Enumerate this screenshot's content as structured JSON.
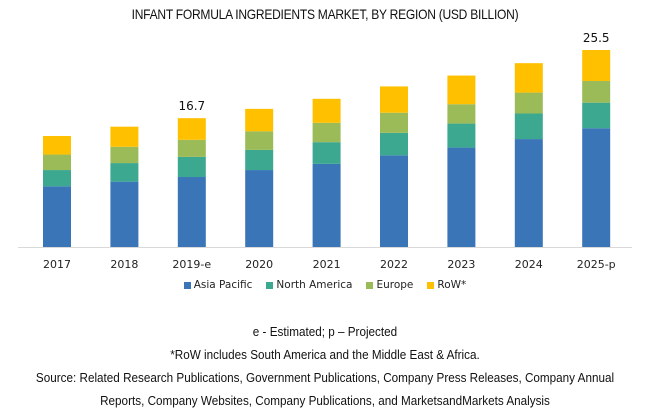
{
  "chart_data": {
    "type": "bar",
    "stacked": true,
    "title": "INFANT FORMULA INGREDIENTS MARKET, BY REGION (USD BILLION)",
    "xlabel": "",
    "ylabel": "",
    "ylim": [
      0,
      25.5
    ],
    "grid": false,
    "legend_position": "bottom",
    "categories": [
      "2017",
      "2018",
      "2019-e",
      "2020",
      "2021",
      "2022",
      "2023",
      "2024",
      "2025-p"
    ],
    "series": [
      {
        "name": "Asia Pacific",
        "color": "#3A75B8",
        "values": [
          7.9,
          8.5,
          9.1,
          10.0,
          10.8,
          11.9,
          12.9,
          14.0,
          15.4
        ]
      },
      {
        "name": "North America",
        "color": "#3BA88F",
        "values": [
          2.1,
          2.4,
          2.6,
          2.6,
          2.8,
          2.9,
          3.1,
          3.3,
          3.3
        ]
      },
      {
        "name": "Europe",
        "color": "#9BBB59",
        "values": [
          2.0,
          2.1,
          2.2,
          2.4,
          2.5,
          2.6,
          2.5,
          2.7,
          2.8
        ]
      },
      {
        "name": "RoW*",
        "color": "#FFC000",
        "values": [
          2.4,
          2.6,
          2.8,
          2.9,
          3.1,
          3.4,
          3.7,
          3.8,
          4.0
        ]
      }
    ],
    "data_labels": [
      {
        "category": "2019-e",
        "text": "16.7"
      },
      {
        "category": "2025-p",
        "text": "25.5"
      }
    ]
  },
  "footnotes": {
    "abbrev": "e - Estimated; p – Projected",
    "row_note": "*RoW includes South America and the Middle East & Africa.",
    "source_line1": "Source: Related Research Publications, Government Publications, Company Press Releases, Company Annual",
    "source_line2": "Reports, Company Websites, Company Publications, and MarketsandMarkets Analysis"
  }
}
